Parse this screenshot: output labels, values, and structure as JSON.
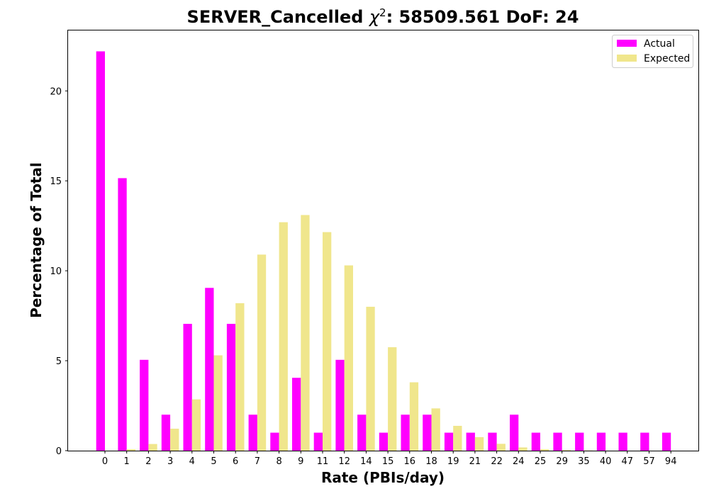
{
  "chart_data": {
    "type": "bar",
    "title_main": "SERVER_Cancelled ",
    "title_chi": "χ",
    "title_sup": "2",
    "title_rest": ": 58509.561 DoF: 24",
    "xlabel": "Rate (PBIs/day)",
    "ylabel": "Percentage of Total",
    "categories": [
      "0",
      "1",
      "2",
      "3",
      "4",
      "5",
      "6",
      "7",
      "8",
      "9",
      "11",
      "12",
      "14",
      "15",
      "16",
      "18",
      "19",
      "21",
      "22",
      "24",
      "25",
      "29",
      "35",
      "40",
      "47",
      "57",
      "94"
    ],
    "series": [
      {
        "name": "Actual",
        "color": "#ff00ff",
        "values": [
          22.2,
          15.15,
          5.05,
          2.0,
          7.05,
          9.05,
          7.05,
          2.0,
          1.0,
          4.05,
          1.0,
          5.05,
          2.0,
          1.0,
          2.0,
          2.0,
          1.0,
          1.0,
          1.0,
          2.0,
          1.0,
          1.0,
          1.0,
          1.0,
          1.0,
          1.0,
          1.0
        ]
      },
      {
        "name": "Expected",
        "color": "#f0e68c",
        "values": [
          0.0,
          0.08,
          0.37,
          1.22,
          2.85,
          5.3,
          8.2,
          10.9,
          12.7,
          13.1,
          12.15,
          10.3,
          8.0,
          5.75,
          3.8,
          2.35,
          1.38,
          0.75,
          0.38,
          0.18,
          0.08,
          0.03,
          0.01,
          0.0,
          0.0,
          0.0,
          0.0
        ]
      }
    ],
    "ylim": [
      0,
      23.4
    ],
    "yticks": [
      0,
      5,
      10,
      15,
      20
    ],
    "legend_position": "top-right",
    "grid": false
  }
}
